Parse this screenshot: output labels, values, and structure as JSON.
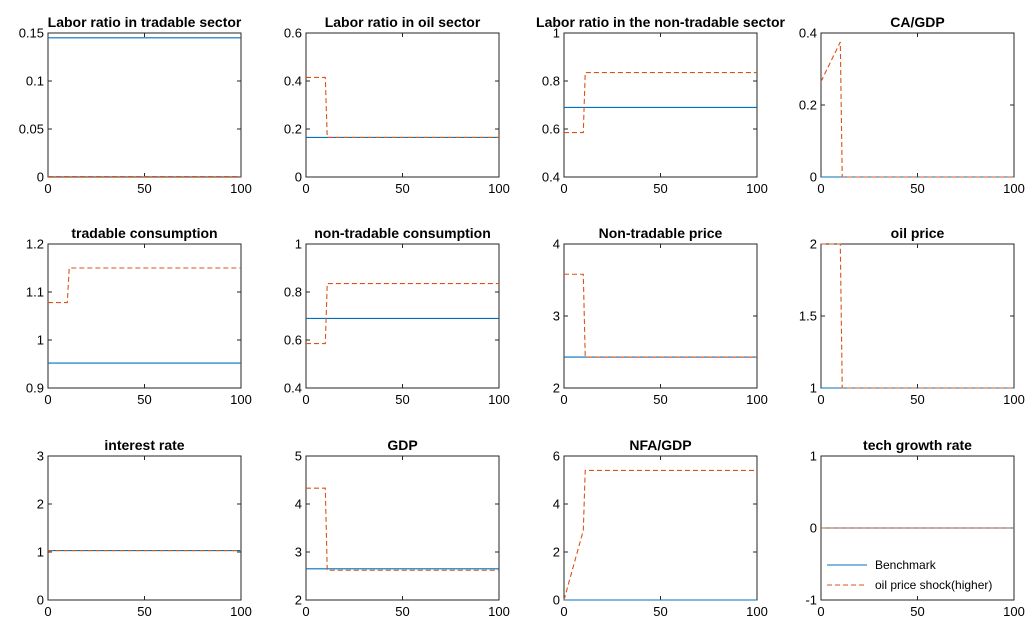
{
  "chart_data": [
    {
      "type": "line",
      "title": "Labor ratio in tradable sector",
      "xlim": [
        0,
        100
      ],
      "ylim": [
        0,
        0.15
      ],
      "xticks": [
        "0",
        "50",
        "100"
      ],
      "yticks": [
        "0",
        "0.05",
        "0.1",
        "0.15"
      ],
      "series": [
        {
          "name": "Benchmark",
          "x": [
            0,
            100
          ],
          "y": [
            0.145,
            0.145
          ]
        },
        {
          "name": "oil price shock(higher)",
          "x": [
            0,
            100
          ],
          "y": [
            0.0005,
            0.0005
          ]
        }
      ]
    },
    {
      "type": "line",
      "title": "Labor ratio in oil sector",
      "xlim": [
        0,
        100
      ],
      "ylim": [
        0,
        0.6
      ],
      "xticks": [
        "0",
        "50",
        "100"
      ],
      "yticks": [
        "0",
        "0.2",
        "0.4",
        "0.6"
      ],
      "series": [
        {
          "name": "Benchmark",
          "x": [
            0,
            100
          ],
          "y": [
            0.165,
            0.165
          ]
        },
        {
          "name": "oil price shock(higher)",
          "x": [
            0,
            10,
            11,
            100
          ],
          "y": [
            0.415,
            0.415,
            0.165,
            0.165
          ]
        }
      ]
    },
    {
      "type": "line",
      "title": "Labor ratio in the non-tradable sector",
      "xlim": [
        0,
        100
      ],
      "ylim": [
        0.4,
        1
      ],
      "xticks": [
        "0",
        "50",
        "100"
      ],
      "yticks": [
        "0.4",
        "0.6",
        "0.8",
        "1"
      ],
      "series": [
        {
          "name": "Benchmark",
          "x": [
            0,
            100
          ],
          "y": [
            0.69,
            0.69
          ]
        },
        {
          "name": "oil price shock(higher)",
          "x": [
            0,
            10,
            11,
            100
          ],
          "y": [
            0.585,
            0.585,
            0.835,
            0.835
          ]
        }
      ]
    },
    {
      "type": "line",
      "title": "CA/GDP",
      "xlim": [
        0,
        100
      ],
      "ylim": [
        0,
        0.4
      ],
      "xticks": [
        "0",
        "50",
        "100"
      ],
      "yticks": [
        "0",
        "0.2",
        "0.4"
      ],
      "series": [
        {
          "name": "Benchmark",
          "x": [
            0,
            100
          ],
          "y": [
            0,
            0
          ]
        },
        {
          "name": "oil price shock(higher)",
          "x": [
            0,
            10,
            11,
            100
          ],
          "y": [
            0.265,
            0.375,
            0,
            0
          ]
        }
      ]
    },
    {
      "type": "line",
      "title": "tradable consumption",
      "xlim": [
        0,
        100
      ],
      "ylim": [
        0.9,
        1.2
      ],
      "xticks": [
        "0",
        "50",
        "100"
      ],
      "yticks": [
        "0.9",
        "1",
        "1.1",
        "1.2"
      ],
      "series": [
        {
          "name": "Benchmark",
          "x": [
            0,
            100
          ],
          "y": [
            0.952,
            0.952
          ]
        },
        {
          "name": "oil price shock(higher)",
          "x": [
            0,
            10,
            11,
            100
          ],
          "y": [
            1.078,
            1.078,
            1.15,
            1.15
          ]
        }
      ]
    },
    {
      "type": "line",
      "title": "non-tradable consumption",
      "xlim": [
        0,
        100
      ],
      "ylim": [
        0.4,
        1
      ],
      "xticks": [
        "0",
        "50",
        "100"
      ],
      "yticks": [
        "0.4",
        "0.6",
        "0.8",
        "1"
      ],
      "series": [
        {
          "name": "Benchmark",
          "x": [
            0,
            100
          ],
          "y": [
            0.69,
            0.69
          ]
        },
        {
          "name": "oil price shock(higher)",
          "x": [
            0,
            10,
            11,
            100
          ],
          "y": [
            0.585,
            0.585,
            0.835,
            0.835
          ]
        }
      ]
    },
    {
      "type": "line",
      "title": "Non-tradable price",
      "xlim": [
        0,
        100
      ],
      "ylim": [
        2,
        4
      ],
      "xticks": [
        "0",
        "50",
        "100"
      ],
      "yticks": [
        "2",
        "3",
        "4"
      ],
      "series": [
        {
          "name": "Benchmark",
          "x": [
            0,
            100
          ],
          "y": [
            2.43,
            2.43
          ]
        },
        {
          "name": "oil price shock(higher)",
          "x": [
            0,
            10,
            11,
            100
          ],
          "y": [
            3.58,
            3.58,
            2.43,
            2.43
          ]
        }
      ]
    },
    {
      "type": "line",
      "title": "oil price",
      "xlim": [
        0,
        100
      ],
      "ylim": [
        1,
        2
      ],
      "xticks": [
        "0",
        "50",
        "100"
      ],
      "yticks": [
        "1",
        "1.5",
        "2"
      ],
      "series": [
        {
          "name": "Benchmark",
          "x": [
            0,
            100
          ],
          "y": [
            1,
            1
          ]
        },
        {
          "name": "oil price shock(higher)",
          "x": [
            0,
            10,
            11,
            100
          ],
          "y": [
            2,
            2,
            1,
            1
          ]
        }
      ]
    },
    {
      "type": "line",
      "title": "interest rate",
      "xlim": [
        0,
        100
      ],
      "ylim": [
        0,
        3
      ],
      "xticks": [
        "0",
        "50",
        "100"
      ],
      "yticks": [
        "0",
        "1",
        "2",
        "3"
      ],
      "series": [
        {
          "name": "Benchmark",
          "x": [
            0,
            100
          ],
          "y": [
            1.03,
            1.03
          ]
        },
        {
          "name": "oil price shock(higher)",
          "x": [
            0,
            100
          ],
          "y": [
            1.03,
            1.03
          ]
        }
      ]
    },
    {
      "type": "line",
      "title": "GDP",
      "xlim": [
        0,
        100
      ],
      "ylim": [
        2,
        5
      ],
      "xticks": [
        "0",
        "50",
        "100"
      ],
      "yticks": [
        "2",
        "3",
        "4",
        "5"
      ],
      "series": [
        {
          "name": "Benchmark",
          "x": [
            0,
            100
          ],
          "y": [
            2.65,
            2.65
          ]
        },
        {
          "name": "oil price shock(higher)",
          "x": [
            0,
            10,
            11,
            100
          ],
          "y": [
            4.33,
            4.33,
            2.62,
            2.62
          ]
        }
      ]
    },
    {
      "type": "line",
      "title": "NFA/GDP",
      "xlim": [
        0,
        100
      ],
      "ylim": [
        0,
        6
      ],
      "xticks": [
        "0",
        "50",
        "100"
      ],
      "yticks": [
        "0",
        "2",
        "4",
        "6"
      ],
      "series": [
        {
          "name": "Benchmark",
          "x": [
            0,
            100
          ],
          "y": [
            0,
            0
          ]
        },
        {
          "name": "oil price shock(higher)",
          "x": [
            0,
            10,
            11,
            100
          ],
          "y": [
            0,
            2.9,
            5.4,
            5.4
          ]
        }
      ]
    },
    {
      "type": "line",
      "title": "tech growth rate",
      "xlim": [
        0,
        100
      ],
      "ylim": [
        -1,
        1
      ],
      "xticks": [
        "0",
        "50",
        "100"
      ],
      "yticks": [
        "-1",
        "0",
        "1"
      ],
      "legend": "bottom-left",
      "series": [
        {
          "name": "Benchmark",
          "x": [
            0,
            100
          ],
          "y": [
            0,
            0
          ]
        },
        {
          "name": "oil price shock(higher)",
          "x": [
            0,
            100
          ],
          "y": [
            0,
            0
          ]
        }
      ]
    }
  ],
  "legend": {
    "benchmark_label": "Benchmark",
    "shock_label": "oil price shock(higher)"
  },
  "colors": {
    "benchmark": "#0072BD",
    "shock": "#D95319"
  }
}
